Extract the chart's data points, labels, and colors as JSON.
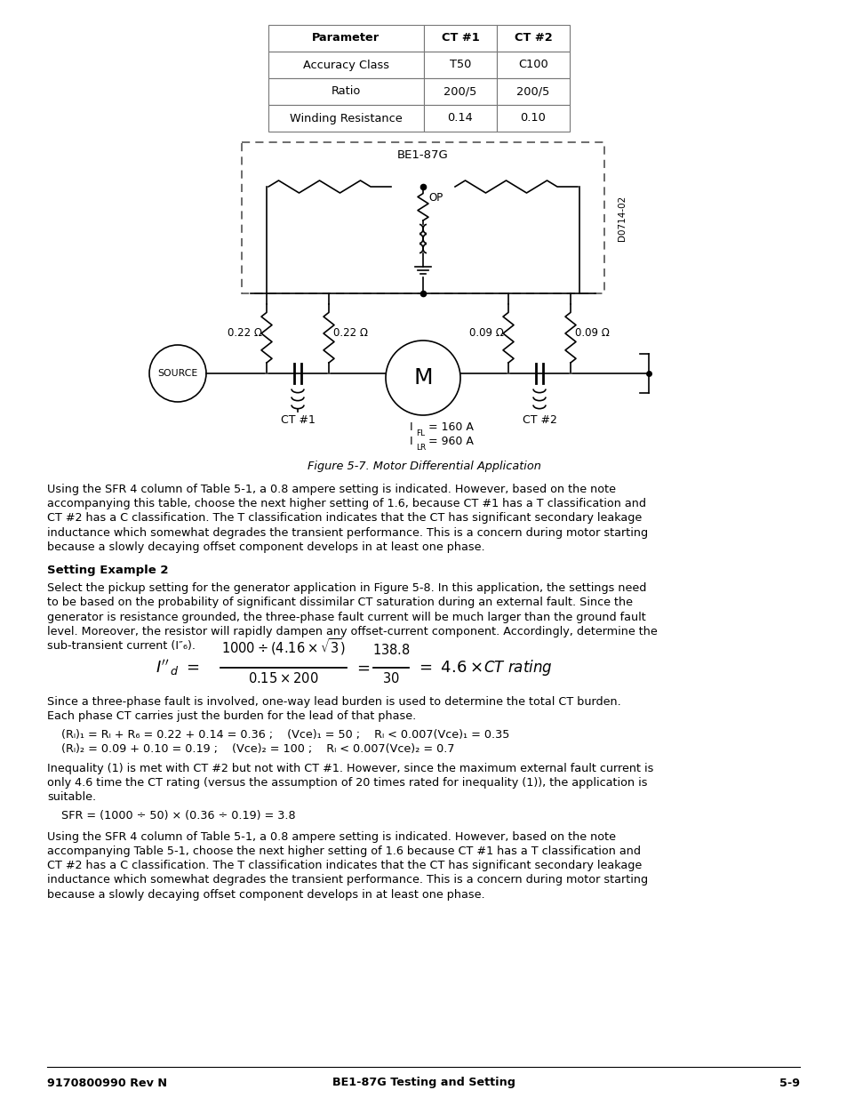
{
  "bg_color": "#ffffff",
  "table": {
    "headers": [
      "Parameter",
      "CT #1",
      "CT #2"
    ],
    "rows": [
      [
        "Accuracy Class",
        "T50",
        "C100"
      ],
      [
        "Ratio",
        "200/5",
        "200/5"
      ],
      [
        "Winding Resistance",
        "0.14",
        "0.10"
      ]
    ]
  },
  "figure_caption": "Figure 5-7. Motor Differential Application",
  "para1_lines": [
    "Using the SFR 4 column of Table 5-1, a 0.8 ampere setting is indicated. However, based on the note",
    "accompanying this table, choose the next higher setting of 1.6, because CT #1 has a T classification and",
    "CT #2 has a C classification. The T classification indicates that the CT has significant secondary leakage",
    "inductance which somewhat degrades the transient performance. This is a concern during motor starting",
    "because a slowly decaying offset component develops in at least one phase."
  ],
  "section_heading": "Setting Example 2",
  "para2_lines": [
    "Select the pickup setting for the generator application in Figure 5-8. In this application, the settings need",
    "to be based on the probability of significant dissimilar CT saturation during an external fault. Since the",
    "generator is resistance grounded, the three-phase fault current will be much larger than the ground fault",
    "level. Moreover, the resistor will rapidly dampen any offset-current component. Accordingly, determine the",
    "sub-transient current (I″₆)."
  ],
  "para3_lines": [
    "Since a three-phase fault is involved, one-way lead burden is used to determine the total CT burden.",
    "Each phase CT carries just the burden for the lead of that phase."
  ],
  "eq_line1": "    (Rₗ)₁ = Rₗ + R₆ = 0.22 + 0.14 = 0.36 ;    (Vce)₁ = 50 ;    Rₗ < 0.007(Vce)₁ = 0.35",
  "eq_line2": "    (Rₗ)₂ = 0.09 + 0.10 = 0.19 ;    (Vce)₂ = 100 ;    Rₗ < 0.007(Vce)₂ = 0.7",
  "para4_lines": [
    "Inequality (1) is met with CT #2 but not with CT #1. However, since the maximum external fault current is",
    "only 4.6 time the CT rating (versus the assumption of 20 times rated for inequality (1)), the application is",
    "suitable."
  ],
  "sfr_line": "    SFR = (1000 ÷ 50) × (0.36 ÷ 0.19) = 3.8",
  "para5_lines": [
    "Using the SFR 4 column of Table 5-1, a 0.8 ampere setting is indicated. However, based on the note",
    "accompanying Table 5-1, choose the next higher setting of 1.6 because CT #1 has a T classification and",
    "CT #2 has a C classification. The T classification indicates that the CT has significant secondary leakage",
    "inductance which somewhat degrades the transient performance. This is a concern during motor starting",
    "because a slowly decaying offset component develops in at least one phase."
  ],
  "footer_left": "9170800990 Rev N",
  "footer_center": "BE1-87G Testing and Setting",
  "footer_right": "5-9",
  "ifl_label": "I",
  "ifl_sub": "FL",
  "ifl_val": " = 160 A",
  "ilr_label": "I",
  "ilr_sub": "LR",
  "ilr_val": " = 960 A",
  "d_label": "D0714-02"
}
